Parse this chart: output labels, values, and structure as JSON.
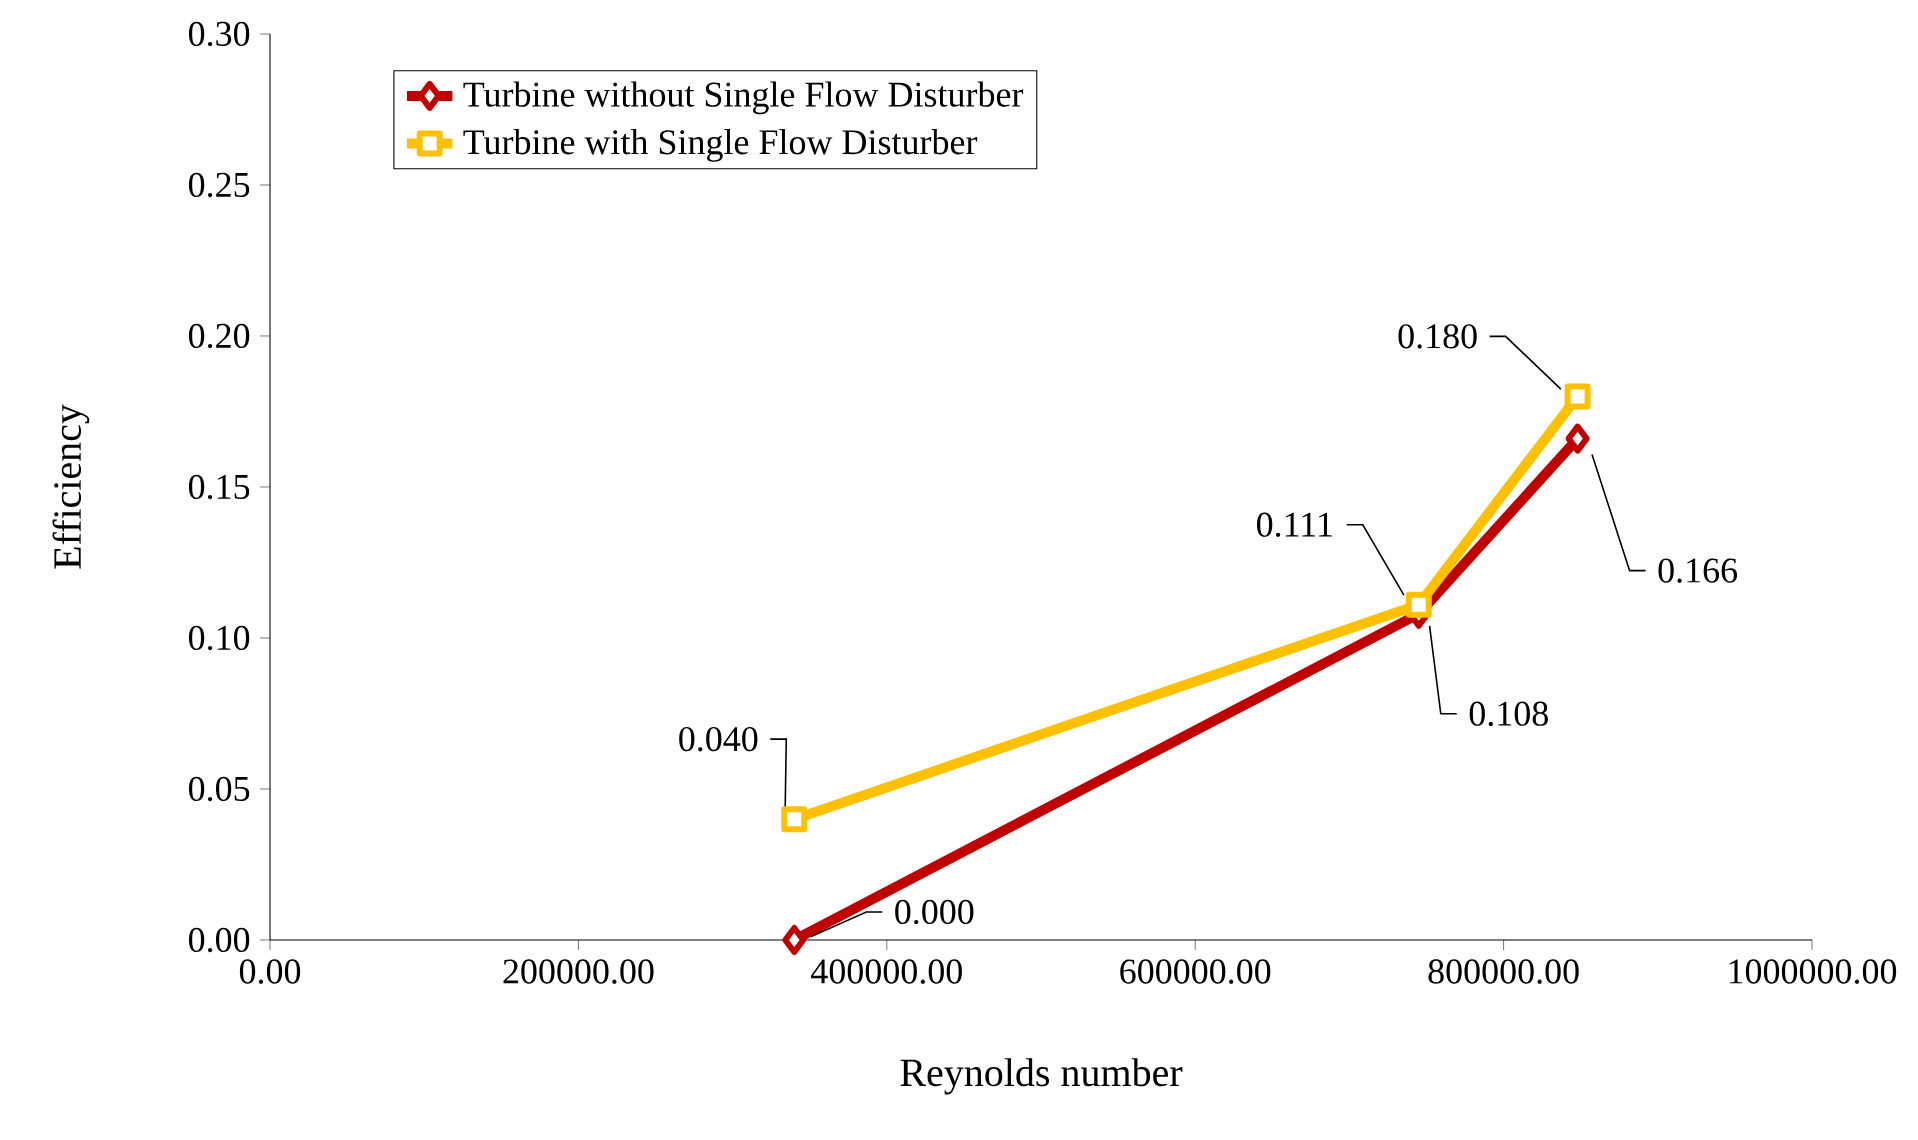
{
  "chart_data": {
    "type": "line",
    "xlabel": "Reynolds number",
    "ylabel": "Efficiency",
    "x": [
      340000,
      745000,
      848000
    ],
    "xlim": [
      0,
      1000000
    ],
    "xticks": [
      {
        "value": 0,
        "label": "0.00"
      },
      {
        "value": 200000,
        "label": "200000.00"
      },
      {
        "value": 400000,
        "label": "400000.00"
      },
      {
        "value": 600000,
        "label": "600000.00"
      },
      {
        "value": 800000,
        "label": "800000.00"
      },
      {
        "value": 1000000,
        "label": "1000000.00"
      }
    ],
    "ylim": [
      0,
      0.3
    ],
    "yticks": [
      {
        "value": 0,
        "label": "0.00"
      },
      {
        "value": 0.05,
        "label": "0.05"
      },
      {
        "value": 0.1,
        "label": "0.10"
      },
      {
        "value": 0.15,
        "label": "0.15"
      },
      {
        "value": 0.2,
        "label": "0.20"
      },
      {
        "value": 0.25,
        "label": "0.25"
      },
      {
        "value": 0.3,
        "label": "0.30"
      }
    ],
    "series": [
      {
        "name": "Turbine without Single Flow Disturber",
        "color": "#c00000",
        "marker": "diamond",
        "values": [
          0.0,
          0.108,
          0.166
        ],
        "value_labels": [
          "0.000",
          "0.108",
          "0.166"
        ]
      },
      {
        "name": "Turbine with Single Flow Disturber",
        "color": "#ffc000",
        "marker": "square",
        "values": [
          0.04,
          0.111,
          0.18
        ],
        "value_labels": [
          "0.040",
          "0.111",
          "0.180"
        ]
      }
    ],
    "grid": false,
    "legend": "top left"
  }
}
